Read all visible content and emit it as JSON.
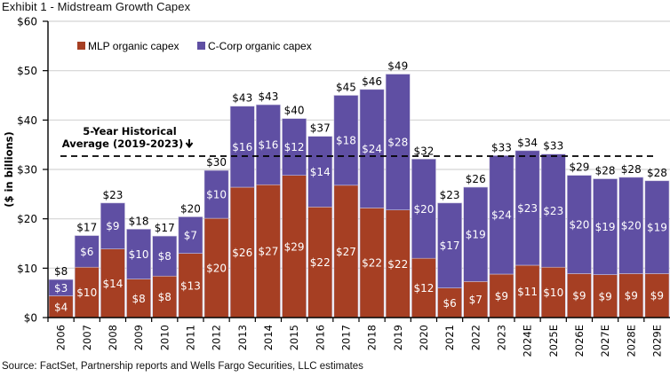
{
  "exhibit_title": "Exhibit 1 - Midstream Growth Capex",
  "source_note": "Source: FactSet, Partnership reports and Wells Fargo Securities, LLC estimates",
  "chart_data": {
    "type": "bar",
    "stacked": true,
    "title": "Exhibit 1 - Midstream Growth Capex",
    "xlabel": "",
    "ylabel": "($ in billions)",
    "ylim": [
      0,
      60
    ],
    "yticks": [
      0,
      10,
      20,
      30,
      40,
      50,
      60
    ],
    "ytick_labels": [
      "$0",
      "$10",
      "$20",
      "$30",
      "$40",
      "$50",
      "$60"
    ],
    "grid": true,
    "legend_position": "top-left",
    "categories": [
      "2006",
      "2007",
      "2008",
      "2009",
      "2010",
      "2011",
      "2012",
      "2013",
      "2014",
      "2015",
      "2016",
      "2017",
      "2018",
      "2019",
      "2020",
      "2021",
      "2022",
      "2023",
      "2024E",
      "2025E",
      "2026E",
      "2027E",
      "2028E",
      "2029E"
    ],
    "series": [
      {
        "name": "MLP organic capex",
        "color": "#a63f23",
        "values": [
          4.4,
          10.2,
          13.9,
          7.8,
          8.4,
          13.0,
          20.1,
          26.4,
          26.9,
          28.8,
          22.4,
          26.8,
          22.2,
          21.8,
          12.0,
          6.0,
          7.3,
          8.8,
          10.6,
          10.2,
          8.9,
          8.7,
          8.9,
          8.9
        ],
        "labels": [
          "$4",
          "$10",
          "$14",
          "$8",
          "$8",
          "$13",
          "$20",
          "$26",
          "$27",
          "$29",
          "$22",
          "$27",
          "$22",
          "$22",
          "$12",
          "$6",
          "$7",
          "$9",
          "$11",
          "$10",
          "$9",
          "$9",
          "$9",
          "$9"
        ]
      },
      {
        "name": "C-Corp organic capex",
        "color": "#5f4fa3",
        "values": [
          3.3,
          6.4,
          9.3,
          10.1,
          8.1,
          7.4,
          9.7,
          16.4,
          16.2,
          11.5,
          14.3,
          18.2,
          24.0,
          27.5,
          20.1,
          17.2,
          19.1,
          24.0,
          23.2,
          22.9,
          19.9,
          19.4,
          19.5,
          18.8
        ],
        "labels": [
          "$3",
          "$6",
          "$9",
          "$10",
          "$8",
          "$7",
          "$10",
          "$16",
          "$16",
          "$12",
          "$14",
          "$18",
          "$24",
          "$28",
          "$20",
          "$17",
          "$19",
          "$24",
          "$23",
          "$23",
          "$20",
          "$19",
          "$20",
          "$19"
        ]
      }
    ],
    "totals": [
      7.7,
      16.6,
      23.2,
      17.9,
      16.5,
      20.4,
      29.8,
      42.8,
      43.1,
      40.3,
      36.7,
      45.0,
      46.2,
      49.3,
      32.1,
      23.2,
      26.4,
      32.8,
      33.8,
      33.1,
      28.8,
      28.1,
      28.4,
      27.7
    ],
    "total_labels": [
      "$8",
      "$17",
      "$23",
      "$18",
      "$17",
      "$20",
      "$30",
      "$43",
      "$43",
      "$40",
      "$37",
      "$45",
      "$46",
      "$49",
      "$32",
      "$23",
      "$26",
      "$33",
      "$34",
      "$33",
      "$29",
      "$28",
      "$28",
      "$28"
    ],
    "reference_line": {
      "label_line1": "5-Year Historical",
      "label_line2": "Average (2019-2023)",
      "arrow": "down-arrow",
      "value": 32.7,
      "style": "dashed"
    }
  }
}
